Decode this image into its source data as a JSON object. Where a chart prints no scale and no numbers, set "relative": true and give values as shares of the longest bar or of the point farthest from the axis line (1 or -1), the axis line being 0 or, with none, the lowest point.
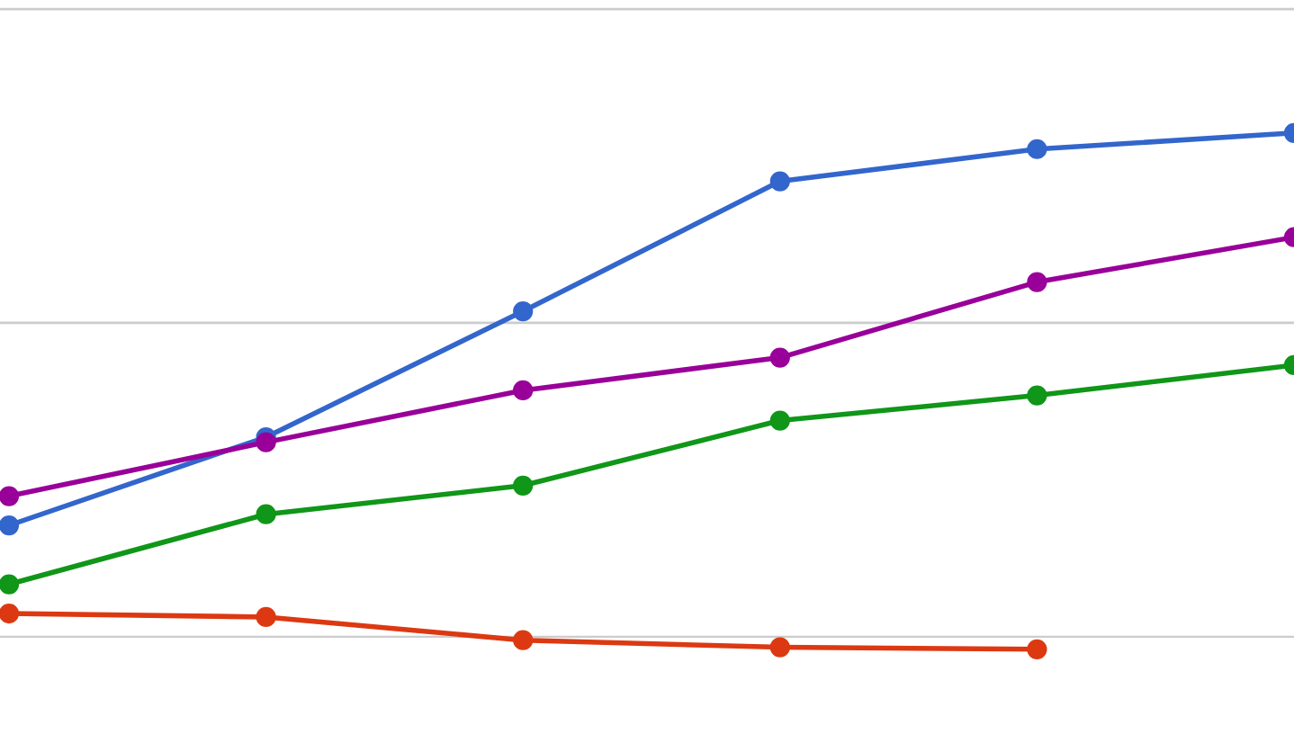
{
  "chart_data": {
    "type": "line",
    "relative": true,
    "categories": [
      null,
      null,
      null,
      null,
      null,
      null
    ],
    "ref_lines": [
      {
        "axis": "y",
        "value": 0.623,
        "color": "#cccccc"
      },
      {
        "axis": "y",
        "value": 1.246,
        "color": "#cccccc"
      }
    ],
    "marker": "circle",
    "line_style": "solid",
    "legend": false,
    "series": [
      {
        "color": "#3366cc",
        "values": [
          0.221,
          0.396,
          0.646,
          0.904,
          0.968,
          1
        ]
      },
      {
        "color": "#990099",
        "values": [
          0.279,
          0.386,
          0.489,
          0.554,
          0.704,
          0.793
        ]
      },
      {
        "color": "#109618",
        "values": [
          0.104,
          0.243,
          0.3,
          0.429,
          0.479,
          0.539
        ]
      },
      {
        "color": "#dc3912",
        "values": [
          0.046,
          0.039,
          -0.007,
          -0.021,
          -0.025,
          null
        ]
      }
    ]
  }
}
